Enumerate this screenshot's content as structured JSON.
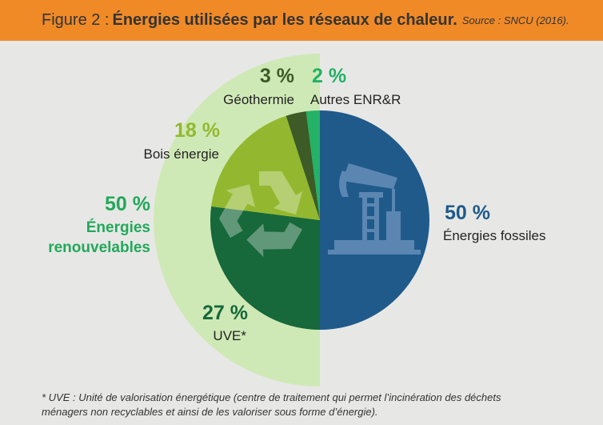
{
  "header": {
    "figure_label": "Figure 2 :",
    "title": "Énergies utilisées par les réseaux de chaleur.",
    "source": "Source : SNCU (2016)."
  },
  "colors": {
    "header_bg": "#f08a27",
    "background": "#e7e8e6",
    "renewable_band": "#cfe9b6",
    "fossil": "#1f5a8a",
    "fossil_icon": "#5b86b2",
    "uve": "#17683a",
    "bois": "#93b830",
    "geothermie": "#3c5b26",
    "autres": "#23b266"
  },
  "chart_data": {
    "type": "pie",
    "unit": "%",
    "slices": [
      {
        "name": "Énergies fossiles",
        "value": 50,
        "label": "50 %",
        "color": "#1f5a8a"
      },
      {
        "name": "UVE*",
        "value": 27,
        "label": "27 %",
        "color": "#17683a"
      },
      {
        "name": "Bois énergie",
        "value": 18,
        "label": "18 %",
        "color": "#93b830"
      },
      {
        "name": "Géothermie",
        "value": 3,
        "label": "3 %",
        "color": "#3c5b26"
      },
      {
        "name": "Autres ENR&R",
        "value": 2,
        "label": "2 %",
        "color": "#23b266"
      }
    ],
    "group": {
      "name_line1": "Énergies",
      "name_line2": "renouvelables",
      "value": 50,
      "label": "50 %",
      "color": "#cfe9b6"
    }
  },
  "icons": {
    "fossil": "oil-pump-jack-icon",
    "renewable": "recycle-icon"
  },
  "footnote": {
    "line1": "* UVE : Unité de valorisation énergétique (centre de traitement qui permet l’incinération des déchets",
    "line2": "ménagers non recyclables et ainsi de les valoriser sous forme d’énergie)."
  }
}
